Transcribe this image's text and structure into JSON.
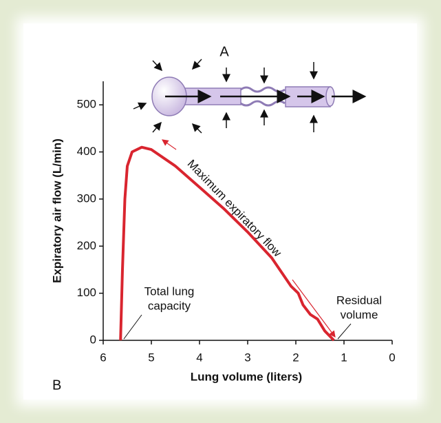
{
  "chart_data": {
    "type": "line",
    "x_label": "Lung volume (liters)",
    "y_label": "Expiratory air flow (L/min)",
    "x": [
      5.64,
      5.6,
      5.55,
      5.5,
      5.4,
      5.2,
      5.0,
      4.5,
      4.0,
      3.5,
      3.0,
      2.5,
      2.1,
      1.95,
      1.85,
      1.7,
      1.55,
      1.4,
      1.21
    ],
    "values": [
      0,
      150,
      300,
      370,
      400,
      410,
      405,
      370,
      325,
      280,
      230,
      175,
      115,
      100,
      75,
      55,
      45,
      20,
      0
    ],
    "color": "#d9252f",
    "xlim": [
      6,
      0
    ],
    "xticks": [
      6,
      5,
      4,
      3,
      2,
      1,
      0
    ],
    "ylim": [
      0,
      550
    ],
    "yticks": [
      0,
      100,
      200,
      300,
      400,
      500
    ],
    "annotations": {
      "a": "A",
      "b": "B",
      "max_flow": "Maximum expiratory flow",
      "tlc": [
        "Total lung",
        "capacity"
      ],
      "rv": [
        "Residual",
        "volume"
      ]
    }
  }
}
